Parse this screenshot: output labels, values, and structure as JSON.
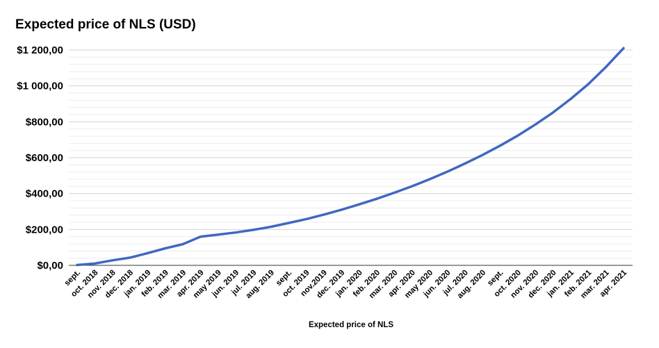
{
  "colors": {
    "series": "#3f68c0",
    "background": "#ffffff"
  },
  "chart_data": {
    "type": "line",
    "title": "Expected price of NLS  (USD)",
    "xlabel": "Expected price of NLS",
    "ylabel": "",
    "ylim": [
      0,
      1200
    ],
    "yticks": [
      0,
      200,
      400,
      600,
      800,
      1000,
      1200
    ],
    "ytick_labels": [
      "$0,00",
      "$200,00",
      "$400,00",
      "$600,00",
      "$800,00",
      "$1 000,00",
      "$1 200,00"
    ],
    "grid": true,
    "minor_grid": true,
    "legend": "none",
    "categories": [
      "sept.",
      "oct. 2018",
      "nov. 2018",
      "dec. 2018",
      "jan. 2019",
      "feb. 2019",
      "mar. 2019",
      "apr. 2019",
      "may 2019",
      "jun. 2019",
      "jul. 2019",
      "aug. 2019",
      "sept.",
      "oct. 2019",
      "nov.2019",
      "dec. 2019",
      "jan. 2020",
      "feb. 2020",
      "mar. 2020",
      "apr. 2020",
      "may 2020",
      "jun. 2020",
      "jul. 2020",
      "aug. 2020",
      "sept.",
      "oct. 2020",
      "nov. 2020",
      "dec. 2020",
      "jan. 2021",
      "feb. 2021",
      "mar. 2021",
      "apr. 2021"
    ],
    "series": [
      {
        "values": [
          2,
          10,
          28,
          43,
          68,
          95,
          118,
          160,
          171,
          183,
          198,
          215,
          236,
          258,
          283,
          310,
          340,
          371,
          405,
          441,
          480,
          522,
          567,
          615,
          667,
          723,
          785,
          852,
          927,
          1010,
          1105,
          1210
        ]
      }
    ]
  }
}
